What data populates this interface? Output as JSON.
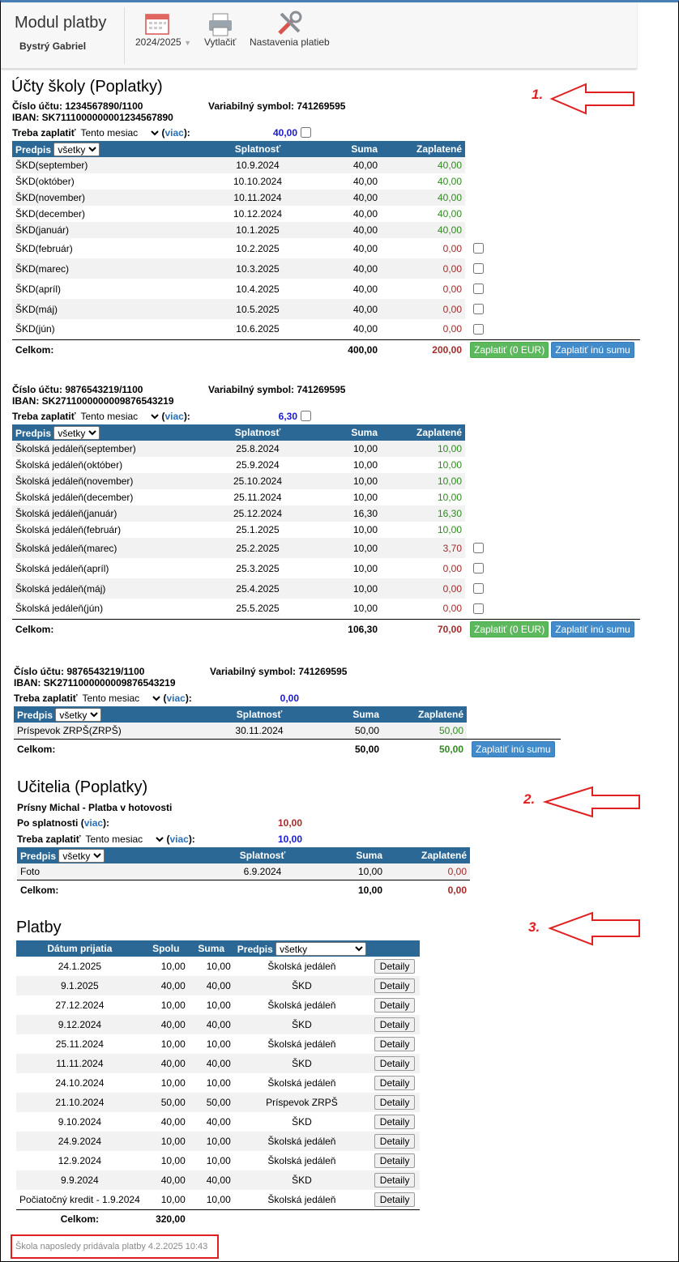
{
  "header": {
    "title": "Modul platby",
    "user": "Bystrý Gabriel",
    "year": "2024/2025",
    "print": "Vytlačiť",
    "settings": "Nastavenia platieb"
  },
  "labels": {
    "open": "(",
    "close": "):"
  },
  "school": {
    "title": "Účty školy (Poplatky)",
    "accounts": [
      {
        "account": "Číslo účtu: 1234567890/1100",
        "iban": "IBAN: SK7111000000001234567890",
        "vs": "Variabilný symbol: 741269595",
        "due_label": "Treba zaplatiť",
        "period": "Tento mesiac",
        "more": "viac",
        "due_amount": "40,00",
        "due_checkbox": true,
        "selectable": true,
        "columns": [
          "Predpis",
          "Splatnosť",
          "Suma",
          "Zaplatené"
        ],
        "filter": "všetky",
        "rows": [
          [
            "ŠKD(september)",
            "10.9.2024",
            "40,00",
            "40,00"
          ],
          [
            "ŠKD(október)",
            "10.10.2024",
            "40,00",
            "40,00"
          ],
          [
            "ŠKD(november)",
            "10.11.2024",
            "40,00",
            "40,00"
          ],
          [
            "ŠKD(december)",
            "10.12.2024",
            "40,00",
            "40,00"
          ],
          [
            "ŠKD(január)",
            "10.1.2025",
            "40,00",
            "40,00"
          ],
          [
            "ŠKD(február)",
            "10.2.2025",
            "40,00",
            "0,00"
          ],
          [
            "ŠKD(marec)",
            "10.3.2025",
            "40,00",
            "0,00"
          ],
          [
            "ŠKD(apríl)",
            "10.4.2025",
            "40,00",
            "0,00"
          ],
          [
            "ŠKD(máj)",
            "10.5.2025",
            "40,00",
            "0,00"
          ],
          [
            "ŠKD(jún)",
            "10.6.2025",
            "40,00",
            "0,00"
          ]
        ],
        "total_label": "Celkom:",
        "total_sum": "400,00",
        "total_paid": "200,00",
        "buttons": [
          "Zaplatiť (0 EUR)",
          "Zaplatiť inú sumu"
        ]
      },
      {
        "account": "Číslo účtu: 9876543219/1100",
        "iban": "IBAN: SK2711000000009876543219",
        "vs": "Variabilný symbol: 741269595",
        "due_label": "Treba zaplatiť",
        "period": "Tento mesiac",
        "more": "viac",
        "due_amount": "6,30",
        "due_checkbox": true,
        "selectable": true,
        "columns": [
          "Predpis",
          "Splatnosť",
          "Suma",
          "Zaplatené"
        ],
        "filter": "všetky",
        "rows": [
          [
            "Školská jedáleň(september)",
            "25.8.2024",
            "10,00",
            "10,00"
          ],
          [
            "Školská jedáleň(október)",
            "25.9.2024",
            "10,00",
            "10,00"
          ],
          [
            "Školská jedáleň(november)",
            "25.10.2024",
            "10,00",
            "10,00"
          ],
          [
            "Školská jedáleň(december)",
            "25.11.2024",
            "10,00",
            "10,00"
          ],
          [
            "Školská jedáleň(január)",
            "25.12.2024",
            "16,30",
            "16,30"
          ],
          [
            "Školská jedáleň(február)",
            "25.1.2025",
            "10,00",
            "10,00"
          ],
          [
            "Školská jedáleň(marec)",
            "25.2.2025",
            "10,00",
            "3,70"
          ],
          [
            "Školská jedáleň(apríl)",
            "25.3.2025",
            "10,00",
            "0,00"
          ],
          [
            "Školská jedáleň(máj)",
            "25.4.2025",
            "10,00",
            "0,00"
          ],
          [
            "Školská jedáleň(jún)",
            "25.5.2025",
            "10,00",
            "0,00"
          ]
        ],
        "total_label": "Celkom:",
        "total_sum": "106,30",
        "total_paid": "70,00",
        "buttons": [
          "Zaplatiť (0 EUR)",
          "Zaplatiť inú sumu"
        ]
      },
      {
        "account": "Číslo účtu: 9876543219/1100",
        "iban": "IBAN: SK2711000000009876543219",
        "vs": "Variabilný symbol: 741269595",
        "due_label": "Treba zaplatiť",
        "period": "Tento mesiac",
        "more": "viac",
        "due_amount": "0,00",
        "due_checkbox": false,
        "selectable": true,
        "columns": [
          "Predpis",
          "Splatnosť",
          "Suma",
          "Zaplatené"
        ],
        "filter": "všetky",
        "rows": [
          [
            "Príspevok ZRPŠ(ZRPŠ)",
            "30.11.2024",
            "50,00",
            "50,00"
          ]
        ],
        "total_label": "Celkom:",
        "total_sum": "50,00",
        "total_paid": "50,00",
        "buttons": [
          "Zaplatiť inú sumu"
        ]
      }
    ]
  },
  "teachers": {
    "title": "Učitelia (Poplatky)",
    "person": "Prísny Michal - Platba v hotovosti",
    "overdue_label": "Po splatnosti",
    "overdue_more": "viac",
    "overdue_amount": "10,00",
    "account": {
      "due_label": "Treba zaplatiť",
      "period": "Tento mesiac",
      "more": "viac",
      "due_amount": "10,00",
      "due_checkbox": false,
      "selectable": false,
      "columns": [
        "Predpis",
        "Splatnosť",
        "Suma",
        "Zaplatené"
      ],
      "filter": "všetky",
      "rows": [
        [
          "Foto",
          "6.9.2024",
          "10,00",
          "0,00"
        ]
      ],
      "total_label": "Celkom:",
      "total_sum": "10,00",
      "total_paid": "0,00",
      "buttons": []
    }
  },
  "payments": {
    "title": "Platby",
    "columns": [
      "Dátum prijatia",
      "Spolu",
      "Suma",
      "Predpis"
    ],
    "filter": "všetky",
    "button": "Detaily",
    "rows": [
      [
        "24.1.2025",
        "10,00",
        "10,00",
        "Školská jedáleň"
      ],
      [
        "9.1.2025",
        "40,00",
        "40,00",
        "ŠKD"
      ],
      [
        "27.12.2024",
        "10,00",
        "10,00",
        "Školská jedáleň"
      ],
      [
        "9.12.2024",
        "40,00",
        "40,00",
        "ŠKD"
      ],
      [
        "25.11.2024",
        "10,00",
        "10,00",
        "Školská jedáleň"
      ],
      [
        "11.11.2024",
        "40,00",
        "40,00",
        "ŠKD"
      ],
      [
        "24.10.2024",
        "10,00",
        "10,00",
        "Školská jedáleň"
      ],
      [
        "21.10.2024",
        "50,00",
        "50,00",
        "Príspevok ZRPŠ"
      ],
      [
        "9.10.2024",
        "40,00",
        "40,00",
        "ŠKD"
      ],
      [
        "24.9.2024",
        "10,00",
        "10,00",
        "Školská jedáleň"
      ],
      [
        "12.9.2024",
        "10,00",
        "10,00",
        "Školská jedáleň"
      ],
      [
        "9.9.2024",
        "40,00",
        "40,00",
        "ŠKD"
      ],
      [
        "Počiatočný kredit - 1.9.2024",
        "10,00",
        "10,00",
        "Školská jedáleň"
      ]
    ],
    "total_label": "Celkom:",
    "total": "320,00"
  },
  "footer": "Škola naposledy pridávala platby 4.2.2025 10:43",
  "annotations": [
    "1.",
    "2.",
    "3."
  ]
}
